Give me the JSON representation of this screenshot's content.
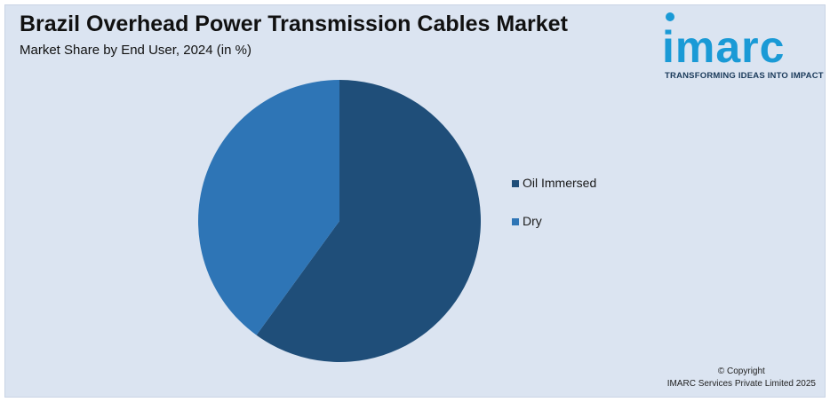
{
  "header": {
    "title": "Brazil Overhead Power Transmission Cables Market",
    "subtitle": "Market Share by End User, 2024 (in %)"
  },
  "logo": {
    "wordmark": "imarc",
    "tagline": "TRANSFORMING IDEAS INTO IMPACT"
  },
  "chart_data": {
    "type": "pie",
    "title": "Brazil Overhead Power Transmission Cables Market",
    "subtitle": "Market Share by End User, 2024 (in %)",
    "categories": [
      "Oil Immersed",
      "Dry"
    ],
    "values": [
      60,
      40
    ],
    "colors": [
      "#1f4e79",
      "#2e75b6"
    ],
    "legend_position": "right"
  },
  "footer": {
    "copyright_line1": "© Copyright",
    "copyright_line2": "IMARC Services Private Limited 2025"
  },
  "colors": {
    "background": "#dbe4f1",
    "brand": "#1a9ad6"
  }
}
